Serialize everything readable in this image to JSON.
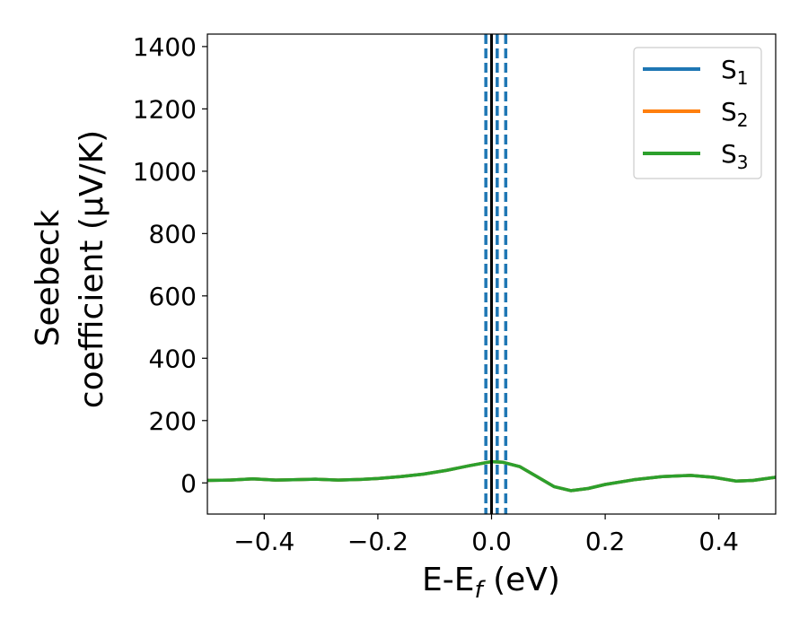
{
  "chart_data": {
    "type": "line",
    "title": "",
    "xlabel": "E-E",
    "xlabel_sub": "f",
    "xlabel_unit": " (eV)",
    "ylabel_line1": "Seebeck",
    "ylabel_line2": "coefficient  (μV/K)",
    "xlim": [
      -0.5,
      0.5
    ],
    "ylim": [
      -100,
      1440
    ],
    "xticks": [
      -0.4,
      -0.2,
      0.0,
      0.2,
      0.4
    ],
    "xtick_labels": [
      "−0.4",
      "−0.2",
      "0.0",
      "0.2",
      "0.4"
    ],
    "yticks": [
      0,
      200,
      400,
      600,
      800,
      1000,
      1200,
      1400
    ],
    "ytick_labels": [
      "0",
      "200",
      "400",
      "600",
      "800",
      "1000",
      "1200",
      "1400"
    ],
    "grid": false,
    "legend_position": "top-right",
    "x": [
      -0.5,
      -0.46,
      -0.42,
      -0.38,
      -0.35,
      -0.31,
      -0.27,
      -0.23,
      -0.2,
      -0.16,
      -0.12,
      -0.08,
      -0.04,
      -0.01,
      0.0,
      0.02,
      0.05,
      0.08,
      0.11,
      0.14,
      0.17,
      0.2,
      0.25,
      0.3,
      0.35,
      0.39,
      0.43,
      0.46,
      0.5
    ],
    "series": [
      {
        "name": "S1",
        "label_main": "S",
        "label_sub": "1",
        "color": "#1f77b4",
        "values": [
          8,
          9,
          13,
          9,
          10,
          12,
          9,
          11,
          14,
          20,
          28,
          40,
          55,
          65,
          68,
          66,
          52,
          20,
          -12,
          -25,
          -18,
          -5,
          10,
          20,
          24,
          18,
          6,
          8,
          18
        ]
      },
      {
        "name": "S2",
        "label_main": "S",
        "label_sub": "2",
        "color": "#ff7f0e",
        "values": [
          8,
          9,
          13,
          9,
          10,
          12,
          9,
          11,
          14,
          20,
          28,
          40,
          55,
          65,
          68,
          66,
          52,
          20,
          -12,
          -25,
          -18,
          -5,
          10,
          20,
          24,
          18,
          6,
          8,
          18
        ]
      },
      {
        "name": "S3",
        "label_main": "S",
        "label_sub": "3",
        "color": "#2ca02c",
        "values": [
          8,
          9,
          13,
          9,
          10,
          12,
          9,
          11,
          14,
          20,
          28,
          40,
          55,
          65,
          68,
          66,
          52,
          20,
          -12,
          -25,
          -18,
          -5,
          10,
          20,
          24,
          18,
          6,
          8,
          18
        ]
      }
    ],
    "vlines": [
      {
        "x": 0.0,
        "color": "#000000",
        "style": "solid"
      },
      {
        "x": -0.01,
        "color": "#1f77b4",
        "style": "dashed"
      },
      {
        "x": 0.01,
        "color": "#1f77b4",
        "style": "dashed"
      },
      {
        "x": 0.025,
        "color": "#1f77b4",
        "style": "dashed"
      }
    ]
  }
}
